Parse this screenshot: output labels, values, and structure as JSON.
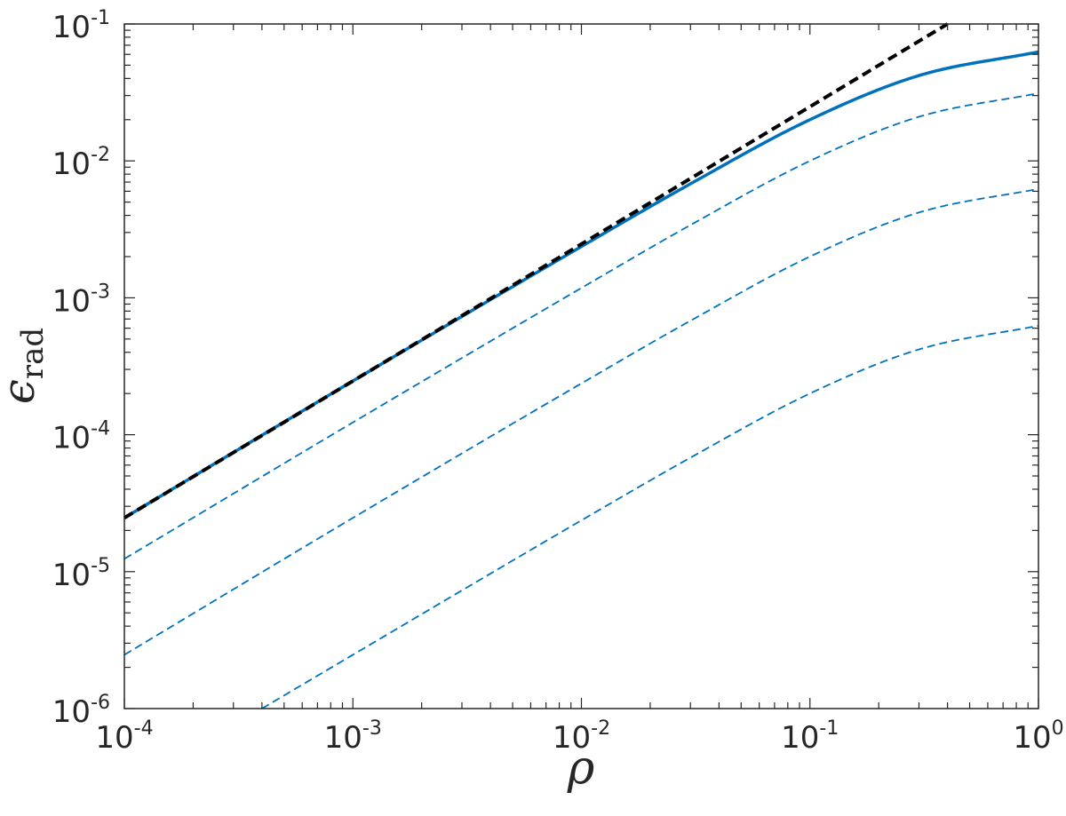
{
  "chart_data": {
    "type": "line",
    "title": "",
    "xlabel": "ρ",
    "ylabel": {
      "base": "ϵ",
      "subscript": "rad"
    },
    "x_scale": "log",
    "y_scale": "log",
    "xlim": [
      0.0001,
      1
    ],
    "ylim": [
      1e-06,
      0.1
    ],
    "grid": false,
    "x_ticks": [
      {
        "base": "10",
        "exp": "-4"
      },
      {
        "base": "10",
        "exp": "-3"
      },
      {
        "base": "10",
        "exp": "-2"
      },
      {
        "base": "10",
        "exp": "-1"
      },
      {
        "base": "10",
        "exp": "0"
      }
    ],
    "y_ticks": [
      {
        "base": "10",
        "exp": "-6"
      },
      {
        "base": "10",
        "exp": "-5"
      },
      {
        "base": "10",
        "exp": "-4"
      },
      {
        "base": "10",
        "exp": "-3"
      },
      {
        "base": "10",
        "exp": "-2"
      },
      {
        "base": "10",
        "exp": "-1"
      }
    ],
    "series": [
      {
        "style": "solid",
        "color": "#0072bd",
        "x": [
          0.0001,
          0.001,
          0.01,
          0.03,
          0.1,
          0.3,
          1
        ],
        "y": [
          2.47e-05,
          0.000247,
          0.00237,
          0.0068,
          0.02,
          0.042,
          0.0625
        ]
      },
      {
        "style": "dashed",
        "color": "#0072bd",
        "x": [
          0.0001,
          0.001,
          0.01,
          0.03,
          0.1,
          0.3,
          1
        ],
        "y": [
          1.24e-05,
          0.000123,
          0.00118,
          0.0034,
          0.01,
          0.021,
          0.0312
        ]
      },
      {
        "style": "dashed",
        "color": "#0072bd",
        "x": [
          0.0001,
          0.001,
          0.01,
          0.03,
          0.1,
          0.3,
          1
        ],
        "y": [
          2.47e-06,
          2.47e-05,
          0.000237,
          0.00068,
          0.002,
          0.0042,
          0.00625
        ]
      },
      {
        "style": "dashed",
        "color": "#0072bd",
        "x": [
          0.0004,
          0.001,
          0.01,
          0.03,
          0.1,
          0.3,
          1
        ],
        "y": [
          1e-06,
          2.47e-06,
          2.37e-05,
          6.8e-05,
          0.0002,
          0.00042,
          0.000625
        ]
      },
      {
        "style": "dashed-bold",
        "color": "#000000",
        "x": [
          0.0001,
          0.01,
          0.4
        ],
        "y": [
          2.47e-05,
          0.00247,
          0.1
        ]
      }
    ]
  }
}
